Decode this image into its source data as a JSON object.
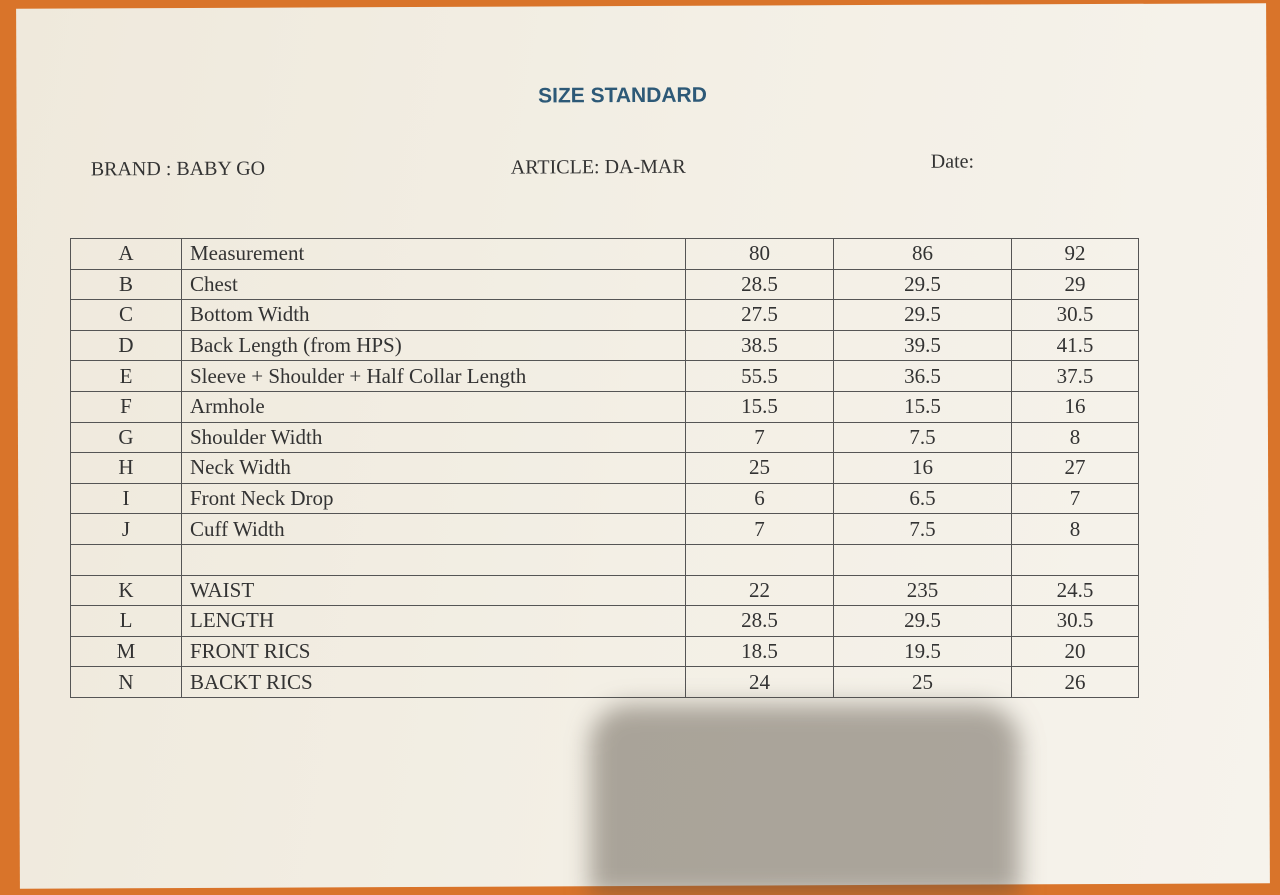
{
  "title": "SIZE STANDARD",
  "brand": "BRAND : BABY GO",
  "article": "ARTICLE: DA-MAR",
  "date": "Date:",
  "rows": [
    {
      "code": "A",
      "name": "Measurement",
      "v": [
        "80",
        "86",
        "92"
      ]
    },
    {
      "code": "B",
      "name": "Chest",
      "v": [
        "28.5",
        "29.5",
        "29"
      ]
    },
    {
      "code": "C",
      "name": "Bottom Width",
      "v": [
        "27.5",
        "29.5",
        "30.5"
      ]
    },
    {
      "code": "D",
      "name": "Back Length (from HPS)",
      "v": [
        "38.5",
        "39.5",
        "41.5"
      ]
    },
    {
      "code": "E",
      "name": "Sleeve + Shoulder + Half Collar Length",
      "v": [
        "55.5",
        "36.5",
        "37.5"
      ]
    },
    {
      "code": "F",
      "name": "Armhole",
      "v": [
        "15.5",
        "15.5",
        "16"
      ]
    },
    {
      "code": "G",
      "name": "Shoulder Width",
      "v": [
        "7",
        "7.5",
        "8"
      ]
    },
    {
      "code": "H",
      "name": "Neck Width",
      "v": [
        "25",
        "16",
        "27"
      ]
    },
    {
      "code": "I",
      "name": "Front Neck Drop",
      "v": [
        "6",
        "6.5",
        "7"
      ]
    },
    {
      "code": "J",
      "name": "Cuff Width",
      "v": [
        "7",
        "7.5",
        "8"
      ]
    },
    {
      "code": "",
      "name": "",
      "v": [
        "",
        "",
        ""
      ]
    },
    {
      "code": "K",
      "name": "WAIST",
      "v": [
        "22",
        "235",
        "24.5"
      ]
    },
    {
      "code": "L",
      "name": "LENGTH",
      "v": [
        "28.5",
        "29.5",
        "30.5"
      ]
    },
    {
      "code": "M",
      "name": "FRONT RICS",
      "v": [
        "18.5",
        "19.5",
        "20"
      ]
    },
    {
      "code": "N",
      "name": "BACKT RICS",
      "v": [
        "24",
        "25",
        "26"
      ]
    }
  ]
}
